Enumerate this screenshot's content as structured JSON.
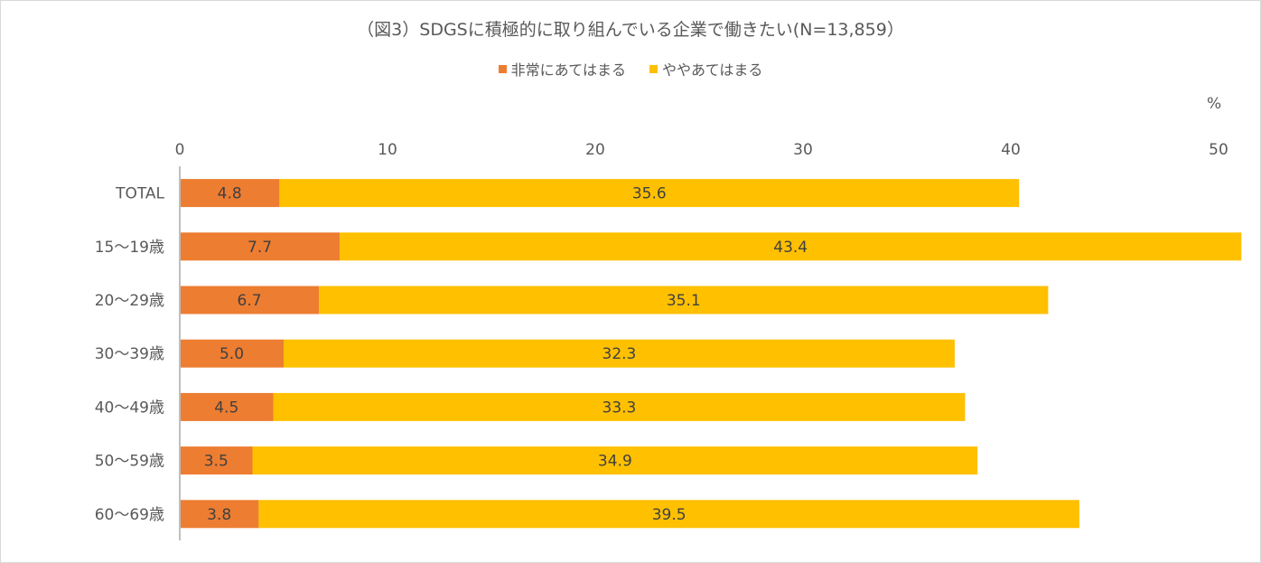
{
  "chart_data": {
    "type": "bar",
    "orientation": "horizontal",
    "stacked": true,
    "title": "（図3）SDGSに積極的に取り組んでいる企業で働きたい(N=13,859）",
    "unit": "%",
    "xlim": [
      0,
      50
    ],
    "xticks": [
      0,
      10,
      20,
      30,
      40,
      50
    ],
    "categories": [
      "TOTAL",
      "15～19歳",
      "20～29歳",
      "30～39歳",
      "40～49歳",
      "50～59歳",
      "60～69歳"
    ],
    "series": [
      {
        "name": "非常にあてはまる",
        "color": "#ED7D31",
        "values": [
          4.8,
          7.7,
          6.7,
          5.0,
          4.5,
          3.5,
          3.8
        ],
        "labels": [
          "4.8",
          "7.7",
          "6.7",
          "5.0",
          "4.5",
          "3.5",
          "3.8"
        ]
      },
      {
        "name": "ややあてはまる",
        "color": "#FFC000",
        "values": [
          35.6,
          43.4,
          35.1,
          32.3,
          33.3,
          34.9,
          39.5
        ],
        "labels": [
          "35.6",
          "43.4",
          "35.1",
          "32.3",
          "33.3",
          "34.9",
          "39.5"
        ]
      }
    ],
    "legend_position": "top",
    "grid": false
  }
}
